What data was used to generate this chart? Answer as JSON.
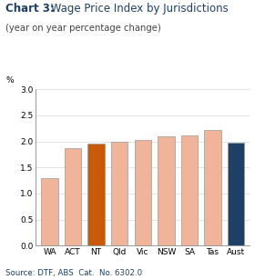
{
  "title_bold": "Chart 3:",
  "title_rest": " Wage Price Index by Jurisdictions",
  "subtitle": "(year on year percentage change)",
  "categories": [
    "WA",
    "ACT",
    "NT",
    "Qld",
    "Vic",
    "NSW",
    "SA",
    "Tas",
    "Aust"
  ],
  "values": [
    1.3,
    1.87,
    1.95,
    2.0,
    2.03,
    2.1,
    2.12,
    2.22,
    1.97
  ],
  "bar_colors": [
    "#f0b49a",
    "#f0b49a",
    "#c85a0a",
    "#f0b49a",
    "#f0b49a",
    "#f0b49a",
    "#f0b49a",
    "#f0b49a",
    "#1e3f66"
  ],
  "edge_color": "#999999",
  "ylabel": "%",
  "ylim": [
    0,
    3.0
  ],
  "yticks": [
    0.0,
    0.5,
    1.0,
    1.5,
    2.0,
    2.5,
    3.0
  ],
  "source": "Source: DTF, ABS  Cat.  No. 6302.0",
  "title_fontsize": 8.5,
  "subtitle_fontsize": 7.2,
  "tick_fontsize": 6.5,
  "source_fontsize": 6.2,
  "background_color": "#ffffff",
  "title_color": "#1e3f66",
  "source_color": "#1e3f66",
  "subtitle_color": "#444444",
  "grid_color": "#cccccc"
}
